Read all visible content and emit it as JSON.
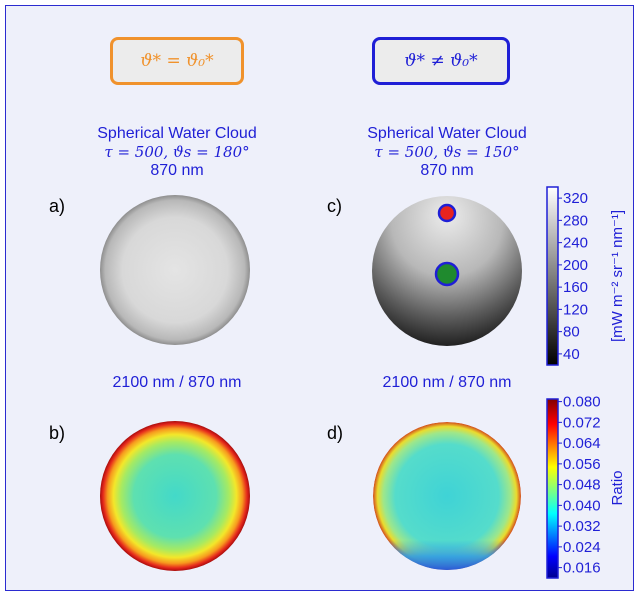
{
  "boxes": {
    "left": "ϑ* = ϑ₀*",
    "right": "ϑ* ≠ ϑ₀*"
  },
  "titles": {
    "left": {
      "line1": "Spherical Water Cloud",
      "tau": "τ = 500, ",
      "theta": "ϑs = 180°",
      "line3": "870 nm"
    },
    "right": {
      "line1": "Spherical Water Cloud",
      "tau": "τ = 500, ",
      "theta": "ϑs = 150°",
      "line3": "870 nm"
    }
  },
  "ratio_titles": {
    "left": "2100 nm / 870 nm",
    "right": "2100 nm / 870 nm"
  },
  "panel_labels": {
    "a": "a)",
    "b": "b)",
    "c": "c)",
    "d": "d)"
  },
  "colorbar_radiance": {
    "label": "[mW m⁻² sr⁻¹ nm⁻¹]",
    "ticks": [
      "40",
      "80",
      "120",
      "160",
      "200",
      "240",
      "280",
      "320"
    ],
    "range": [
      20,
      340
    ]
  },
  "colorbar_ratio": {
    "label": "Ratio",
    "ticks": [
      "0.016",
      "0.024",
      "0.032",
      "0.040",
      "0.048",
      "0.056",
      "0.064",
      "0.072",
      "0.080"
    ],
    "range": [
      0.012,
      0.081
    ]
  },
  "markers": [
    {
      "name": "red-marker",
      "fill": "#e8241e",
      "stroke": "#1f1fd6"
    },
    {
      "name": "green-marker",
      "fill": "#1f8a2e",
      "stroke": "#1f1fd6"
    }
  ],
  "colors": {
    "accent_blue": "#1f1fd6",
    "accent_orange": "#f0922c"
  }
}
